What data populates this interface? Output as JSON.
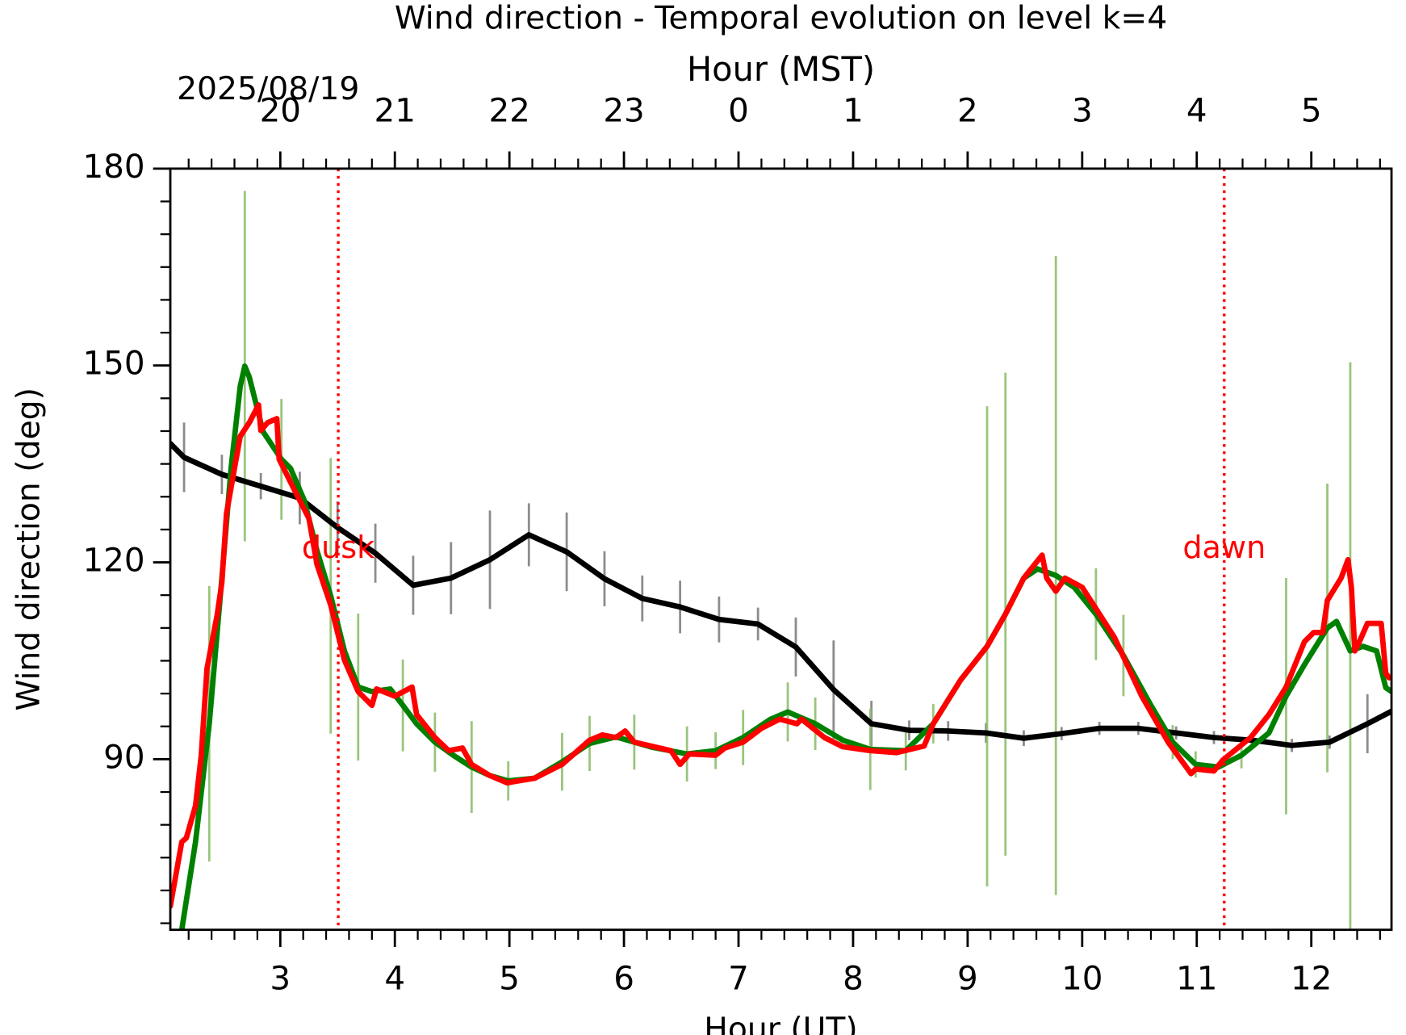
{
  "chart_data": {
    "type": "line",
    "title": "Wind direction - Temporal evolution on level k=4",
    "xlabel": "Hour (UT)",
    "x2label": "Hour (MST)",
    "date_label": "2025/08/19",
    "ylabel": "Wind direction (deg)",
    "xlim": [
      2.04,
      12.7
    ],
    "ylim": [
      64,
      180
    ],
    "xticks": [
      3,
      4,
      5,
      6,
      7,
      8,
      9,
      10,
      11,
      12
    ],
    "x2ticks": [
      {
        "value": 3,
        "label": "20"
      },
      {
        "value": 4,
        "label": "21"
      },
      {
        "value": 5,
        "label": "22"
      },
      {
        "value": 6,
        "label": "23"
      },
      {
        "value": 7,
        "label": "0"
      },
      {
        "value": 8,
        "label": "1"
      },
      {
        "value": 9,
        "label": "2"
      },
      {
        "value": 10,
        "label": "3"
      },
      {
        "value": 11,
        "label": "4"
      },
      {
        "value": 12,
        "label": "5"
      }
    ],
    "yticks": [
      90,
      120,
      150,
      180
    ],
    "xminor_step": 0.2,
    "yminor_step": 5,
    "series": [
      {
        "color": "#000000",
        "error_color": "#808080",
        "x": [
          2.04,
          2.16,
          2.49,
          2.83,
          3.17,
          3.5,
          3.83,
          4.16,
          4.49,
          4.83,
          5.17,
          5.5,
          5.83,
          6.16,
          6.49,
          6.83,
          7.17,
          7.5,
          7.83,
          8.16,
          8.49,
          8.83,
          9.16,
          9.49,
          9.82,
          10.15,
          10.49,
          10.82,
          11.15,
          11.48,
          11.83,
          12.16,
          12.49,
          12.7
        ],
        "values": [
          138.1,
          136.0,
          133.4,
          131.6,
          129.8,
          125.3,
          121.4,
          116.5,
          117.6,
          120.4,
          124.2,
          121.6,
          117.5,
          114.5,
          113.2,
          111.3,
          110.6,
          107.1,
          100.6,
          95.4,
          94.4,
          94.3,
          94.0,
          93.2,
          93.9,
          94.7,
          94.7,
          94.0,
          93.3,
          92.9,
          92.1,
          92.6,
          95.4,
          97.3
        ],
        "errors": [
          null,
          5.3,
          3,
          2,
          4,
          4,
          4.5,
          4.5,
          5.5,
          7.5,
          4.8,
          6,
          4.2,
          3.5,
          4,
          3.5,
          2.5,
          4.5,
          7.5,
          3.5,
          1.5,
          1.5,
          1.5,
          1.2,
          1,
          1,
          1,
          1,
          1,
          1,
          1,
          1,
          4.5,
          null
        ]
      },
      {
        "color": "#008000",
        "error_color": "#8fbf6f",
        "x": [
          2.14,
          2.26,
          2.38,
          2.49,
          2.57,
          2.65,
          2.69,
          2.73,
          2.85,
          3.01,
          3.09,
          3.21,
          3.32,
          3.44,
          3.56,
          3.68,
          3.8,
          3.96,
          4.07,
          4.19,
          4.35,
          4.51,
          4.67,
          4.83,
          4.99,
          5.22,
          5.46,
          5.7,
          5.93,
          6.09,
          6.25,
          6.55,
          6.8,
          7.04,
          7.28,
          7.43,
          7.67,
          7.91,
          8.15,
          8.46,
          8.7,
          8.94,
          9.17,
          9.33,
          9.49,
          9.61,
          9.77,
          9.93,
          10.12,
          10.36,
          10.6,
          10.79,
          10.99,
          11.19,
          11.39,
          11.63,
          11.78,
          11.94,
          12.14,
          12.22,
          12.34,
          12.45,
          12.57,
          12.65,
          12.7
        ],
        "values": [
          64.0,
          77.4,
          95.4,
          117.6,
          134.3,
          146.8,
          149.9,
          148.2,
          139.9,
          135.7,
          134.3,
          129.4,
          121.8,
          114.9,
          106.5,
          101.0,
          100.3,
          100.7,
          98.2,
          95.4,
          92.6,
          90.6,
          88.8,
          87.5,
          86.7,
          87.1,
          89.6,
          92.4,
          93.4,
          92.6,
          91.8,
          90.8,
          91.3,
          93.3,
          96.1,
          97.2,
          95.4,
          92.9,
          91.5,
          91.3,
          95.4,
          102.1,
          107.2,
          112.1,
          117.6,
          119.0,
          118.0,
          116.2,
          112.1,
          105.8,
          98.2,
          92.6,
          89.2,
          88.8,
          90.6,
          94.0,
          99.6,
          104.4,
          110.0,
          111.0,
          106.5,
          107.2,
          106.5,
          100.9,
          100.3
        ],
        "errors": [
          null,
          null,
          21,
          null,
          null,
          null,
          26.7,
          null,
          null,
          9.2,
          null,
          null,
          null,
          21,
          null,
          11.2,
          null,
          null,
          7,
          null,
          4.5,
          null,
          7,
          null,
          3,
          null,
          4.4,
          4.2,
          null,
          4.2,
          null,
          4.2,
          2.8,
          4.2,
          null,
          4.5,
          4,
          null,
          6.2,
          3,
          3,
          null,
          36.6,
          36.8,
          null,
          null,
          48.7,
          null,
          7,
          6.2,
          null,
          2.6,
          2,
          null,
          2,
          null,
          18,
          null,
          22,
          null,
          44,
          null,
          null,
          null,
          null
        ]
      },
      {
        "color": "#ff0000",
        "x": [
          2.04,
          2.14,
          2.18,
          2.26,
          2.31,
          2.36,
          2.45,
          2.49,
          2.53,
          2.6,
          2.65,
          2.73,
          2.81,
          2.83,
          2.89,
          2.97,
          2.99,
          3.13,
          3.25,
          3.32,
          3.44,
          3.56,
          3.68,
          3.8,
          3.84,
          4.0,
          4.15,
          4.19,
          4.35,
          4.47,
          4.59,
          4.67,
          4.83,
          4.98,
          5.22,
          5.3,
          5.46,
          5.7,
          5.81,
          5.93,
          6.01,
          6.09,
          6.41,
          6.49,
          6.57,
          6.8,
          6.88,
          7.04,
          7.2,
          7.36,
          7.51,
          7.55,
          7.75,
          7.91,
          8.15,
          8.38,
          8.62,
          8.7,
          8.94,
          9.17,
          9.33,
          9.49,
          9.65,
          9.69,
          9.77,
          9.85,
          10.0,
          10.28,
          10.52,
          10.75,
          10.95,
          10.99,
          11.15,
          11.23,
          11.47,
          11.63,
          11.78,
          11.94,
          12.02,
          12.1,
          12.14,
          12.26,
          12.32,
          12.35,
          12.38,
          12.42,
          12.49,
          12.61,
          12.65,
          12.68
        ],
        "values": [
          67.6,
          77.4,
          78.0,
          82.9,
          90.6,
          103.8,
          112.1,
          116.9,
          127.4,
          134.3,
          139.2,
          141.3,
          144.0,
          140.1,
          141.3,
          141.9,
          135.7,
          130.8,
          126.7,
          119.7,
          113.5,
          105.1,
          100.3,
          98.2,
          100.7,
          99.6,
          101.0,
          96.8,
          93.3,
          91.3,
          91.7,
          89.2,
          87.5,
          86.4,
          87.1,
          87.8,
          89.2,
          92.9,
          93.7,
          93.3,
          94.3,
          92.6,
          91.3,
          89.2,
          90.8,
          90.6,
          91.7,
          92.6,
          94.7,
          96.1,
          95.4,
          96.1,
          93.3,
          91.9,
          91.3,
          91.0,
          92.0,
          95.4,
          102.1,
          107.2,
          112.1,
          117.6,
          121.1,
          117.6,
          115.6,
          117.6,
          116.2,
          108.6,
          99.6,
          92.6,
          87.8,
          88.5,
          88.2,
          89.9,
          93.3,
          96.8,
          101.0,
          107.9,
          109.3,
          109.3,
          114.2,
          117.6,
          120.4,
          116.2,
          106.5,
          107.9,
          110.7,
          110.7,
          103.1,
          102.4
        ]
      }
    ],
    "vlines": [
      {
        "x": 3.506,
        "label": "dusk",
        "color": "#ff0000"
      },
      {
        "x": 11.24,
        "label": "dawn",
        "color": "#ff0000"
      }
    ]
  }
}
